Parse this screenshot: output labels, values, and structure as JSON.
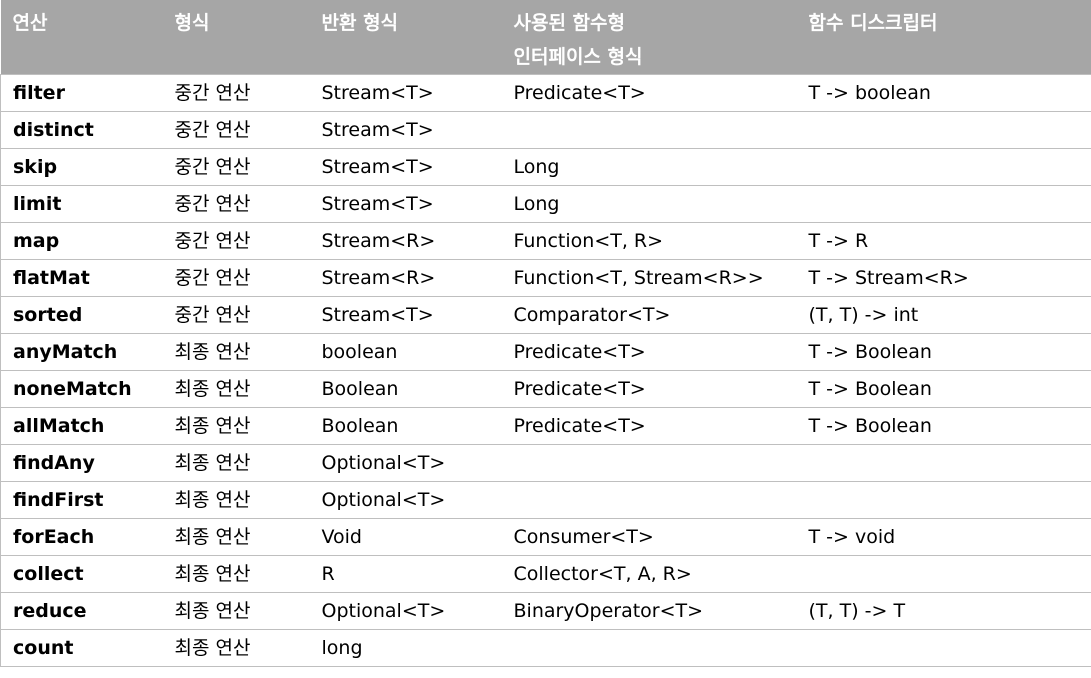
{
  "headers": [
    "연산",
    "형식",
    "반환 형식",
    "사용된 함수형 인터페이스 형식",
    "함수 디스크립터"
  ],
  "header_line1_col4": "사용된 함수형",
  "header_line2_col4": "인터페이스 형식",
  "rows": [
    [
      "filter",
      "중간 연산",
      "Stream<T>",
      "Predicate<T>",
      "T -> boolean"
    ],
    [
      "distinct",
      "중간 연산",
      "Stream<T>",
      "",
      ""
    ],
    [
      "skip",
      "중간 연산",
      "Stream<T>",
      "Long",
      ""
    ],
    [
      "limit",
      "중간 연산",
      "Stream<T>",
      "Long",
      ""
    ],
    [
      "map",
      "중간 연산",
      "Stream<R>",
      "Function<T, R>",
      "T -> R"
    ],
    [
      "flatMat",
      "중간 연산",
      "Stream<R>",
      "Function<T, Stream<R>>",
      "T -> Stream<R>"
    ],
    [
      "sorted",
      "중간 연산",
      "Stream<T>",
      "Comparator<T>",
      "(T, T) -> int"
    ],
    [
      "anyMatch",
      "최종 연산",
      "boolean",
      "Predicate<T>",
      "T -> Boolean"
    ],
    [
      "noneMatch",
      "최종 연산",
      "Boolean",
      "Predicate<T>",
      "T -> Boolean"
    ],
    [
      "allMatch",
      "최종 연산",
      "Boolean",
      "Predicate<T>",
      "T -> Boolean"
    ],
    [
      "findAny",
      "최종 연산",
      "Optional<T>",
      "",
      ""
    ],
    [
      "findFirst",
      "최종 연산",
      "Optional<T>",
      "",
      ""
    ],
    [
      "forEach",
      "최종 연산",
      "Void",
      "Consumer<T>",
      "T -> void"
    ],
    [
      "collect",
      "최종 연산",
      "R",
      "Collector<T, A, R>",
      ""
    ],
    [
      "reduce",
      "최종 연산",
      "Optional<T>",
      "BinaryOperator<T>",
      "(T, T) -> T"
    ],
    [
      "count",
      "최종 연산",
      "long",
      "",
      ""
    ]
  ],
  "colors": {
    "header_bg": "#a6a6a6",
    "header_text": "#ffffff",
    "grid": "#bfbfbf"
  }
}
